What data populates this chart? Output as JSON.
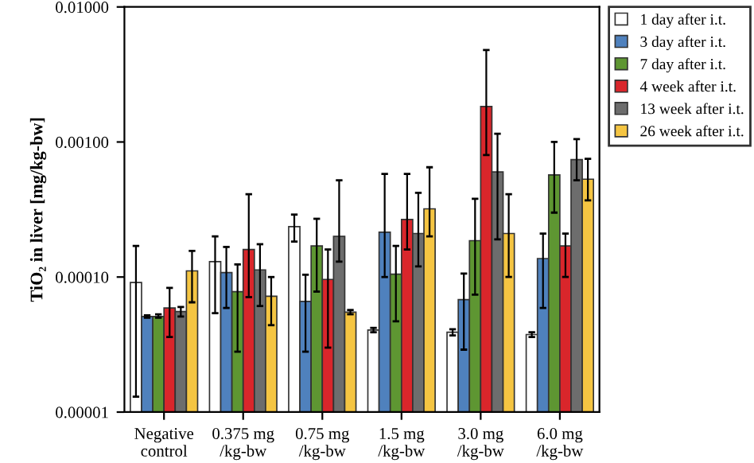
{
  "chart_data": {
    "type": "bar",
    "ylabel": "TiO₂ in liver [mg/kg-bw]",
    "categories": [
      "Negative\ncontrol",
      "0.375 mg\n/kg-bw",
      "0.75 mg\n/kg-bw",
      "1.5 mg\n/kg-bw",
      "3.0 mg\n/kg-bw",
      "6.0 mg\n/kg-bw"
    ],
    "log": true,
    "ylim": [
      1e-05,
      0.01
    ],
    "yticks": [
      {
        "value": 1e-05,
        "label": "0.00001"
      },
      {
        "value": 0.0001,
        "label": "0.00010"
      },
      {
        "value": 0.001,
        "label": "0.00100"
      },
      {
        "value": 0.01,
        "label": "0.01000"
      }
    ],
    "grid": false,
    "legend": "right",
    "series": [
      {
        "name": "1 day after i.t.",
        "color": "#ffffff",
        "values": [
          9.1e-05,
          0.00013,
          0.000236,
          4.05e-05,
          3.9e-05,
          3.75e-05
        ],
        "errors": [
          [
            1.3e-05,
            0.00017
          ],
          [
            5.4e-05,
            0.0002
          ],
          [
            0.000183,
            0.00029
          ],
          [
            3.9e-05,
            4.2e-05
          ],
          [
            3.7e-05,
            4.1e-05
          ],
          [
            3.6e-05,
            3.9e-05
          ]
        ]
      },
      {
        "name": "3 day after i.t.",
        "color": "#4f81bd",
        "values": [
          5.1e-05,
          0.000108,
          6.6e-05,
          0.000215,
          6.8e-05,
          0.000137
        ],
        "errors": [
          [
            5e-05,
            5.2e-05
          ],
          [
            5.9e-05,
            0.000167
          ],
          [
            2.8e-05,
            0.000104
          ],
          [
            0.0001,
            0.00058
          ],
          [
            2.9e-05,
            0.000106
          ],
          [
            5.9e-05,
            0.00021
          ]
        ]
      },
      {
        "name": "7 day after i.t.",
        "color": "#5e9632",
        "values": [
          5.1e-05,
          7.8e-05,
          0.00017,
          0.000105,
          0.000186,
          0.00057
        ],
        "errors": [
          [
            5e-05,
            5.3e-05
          ],
          [
            2.8e-05,
            0.000124
          ],
          [
            7.8e-05,
            0.00027
          ],
          [
            4.7e-05,
            0.00017
          ],
          [
            7.4e-05,
            0.00038
          ],
          [
            0.0003,
            0.001
          ]
        ]
      },
      {
        "name": "4 week after i.t.",
        "color": "#d9262b",
        "values": [
          5.9e-05,
          0.00016,
          9.6e-05,
          0.000267,
          0.00183,
          0.00017
        ],
        "errors": [
          [
            3.6e-05,
            8.3e-05
          ],
          [
            7.1e-05,
            0.00041
          ],
          [
            3e-05,
            0.00016
          ],
          [
            0.00016,
            0.00058
          ],
          [
            0.0008,
            0.0048
          ],
          [
            0.0001,
            0.00021
          ]
        ]
      },
      {
        "name": "13 week after i.t.",
        "color": "#6d6d6d",
        "values": [
          5.55e-05,
          0.000113,
          0.0002,
          0.00021,
          0.0006,
          0.00074
        ],
        "errors": [
          [
            5.1e-05,
            6e-05
          ],
          [
            6.1e-05,
            0.000175
          ],
          [
            0.00013,
            0.00052
          ],
          [
            0.00012,
            0.00042
          ],
          [
            0.00019,
            0.00115
          ],
          [
            0.00052,
            0.00105
          ]
        ]
      },
      {
        "name": "26 week after i.t.",
        "color": "#f5c542",
        "values": [
          0.000111,
          7.2e-05,
          5.5e-05,
          0.00032,
          0.00021,
          0.00053
        ],
        "errors": [
          [
            6.5e-05,
            0.000156
          ],
          [
            4.4e-05,
            0.0001
          ],
          [
            5.3e-05,
            5.7e-05
          ],
          [
            0.0002,
            0.00065
          ],
          [
            0.0001,
            0.00041
          ],
          [
            0.00037,
            0.00075
          ]
        ]
      }
    ]
  }
}
